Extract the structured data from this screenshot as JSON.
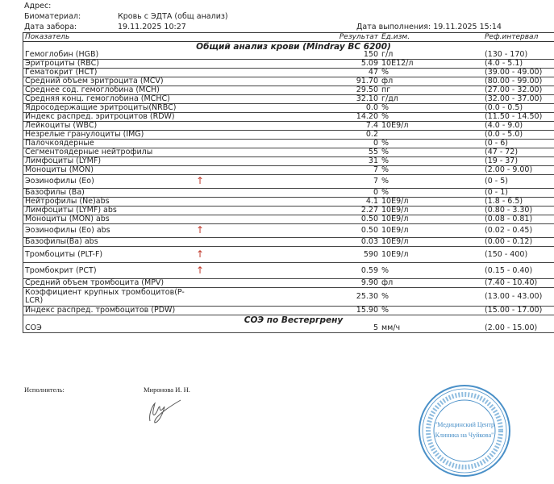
{
  "header": {
    "address_label": "Адрес:",
    "biomaterial_label": "Биоматериал:",
    "biomaterial_value": "Кровь с ЭДТА (общ анализ)",
    "collection_label": "Дата забора:",
    "collection_value": "19.11.2025 10:27",
    "completed": "Дата выполнения: 19.11.2025 15:14"
  },
  "table": {
    "columns": [
      "Показатель",
      "Результат",
      "Ед.изм.",
      "Реф.интервал"
    ],
    "sections": [
      {
        "title": "Общий анализ крови (Mindray BC 6200)",
        "rows": [
          {
            "name": "Гемоглобин (HGB)",
            "flag": "",
            "result": "150",
            "unit": "г/л",
            "ref": "(130 - 170)"
          },
          {
            "name": "Эритроциты (RBC)",
            "flag": "",
            "result": "5.09",
            "unit": "10E12/л",
            "ref": "(4.0 - 5.1)"
          },
          {
            "name": "Гематокрит (HCT)",
            "flag": "",
            "result": "47",
            "unit": "%",
            "ref": "(39.00 - 49.00)"
          },
          {
            "name": "Средний объем эритроцита (MCV)",
            "flag": "",
            "result": "91.70",
            "unit": "фл",
            "ref": "(80.00 - 99.00)"
          },
          {
            "name": "Среднее сод. гемоглобина (MCH)",
            "flag": "",
            "result": "29.50",
            "unit": "пг",
            "ref": "(27.00 - 32.00)"
          },
          {
            "name": "Средняя конц. гемоглобина (MCHC)",
            "flag": "",
            "result": "32.10",
            "unit": "г/дл",
            "ref": "(32.00 - 37.00)"
          },
          {
            "name": "Ядросодержащие эритроциты(NRBC)",
            "flag": "",
            "result": "0.0",
            "unit": "%",
            "ref": "(0.0 - 0.5)"
          },
          {
            "name": "Индекс распред. эритроцитов (RDW)",
            "flag": "",
            "result": "14.20",
            "unit": "%",
            "ref": "(11.50 - 14.50)"
          },
          {
            "name": "Лейкоциты (WBC)",
            "flag": "",
            "result": "7.4",
            "unit": "10E9/л",
            "ref": "(4.0 - 9.0)"
          },
          {
            "name": "Незрелые гранулоциты (IMG)",
            "flag": "",
            "result": "0.2",
            "unit": "",
            "ref": "(0.0 - 5.0)"
          },
          {
            "name": "Палочкоядерные",
            "flag": "",
            "result": "0",
            "unit": "%",
            "ref": "(0 - 6)"
          },
          {
            "name": "Сегментоядерные нейтрофилы",
            "flag": "",
            "result": "55",
            "unit": "%",
            "ref": "(47 - 72)"
          },
          {
            "name": "Лимфоциты (LYMF)",
            "flag": "",
            "result": "31",
            "unit": "%",
            "ref": "(19 - 37)"
          },
          {
            "name": "Моноциты (MON)",
            "flag": "",
            "result": "7",
            "unit": "%",
            "ref": "(2.00 - 9.00)"
          },
          {
            "name": "Эозинофилы (Eo)",
            "flag": "↑",
            "result": "7",
            "unit": "%",
            "ref": "(0 - 5)"
          },
          {
            "name": "Базофилы (Ba)",
            "flag": "",
            "result": "0",
            "unit": "%",
            "ref": "(0 - 1)"
          },
          {
            "name": "Нейтрофилы (Ne)abs",
            "flag": "",
            "result": "4.1",
            "unit": "10E9/л",
            "ref": "(1.8 - 6.5)"
          },
          {
            "name": "Лимфоциты (LYMF) abs",
            "flag": "",
            "result": "2.27",
            "unit": "10E9/л",
            "ref": "(0.80 - 3.30)"
          },
          {
            "name": "Моноциты (MON) abs",
            "flag": "",
            "result": "0.50",
            "unit": "10E9/л",
            "ref": "(0.08 - 0.81)"
          },
          {
            "name": "Эозинофилы (Eo) abs",
            "flag": "↑",
            "result": "0.50",
            "unit": "10E9/л",
            "ref": "(0.02 - 0.45)"
          },
          {
            "name": "Базофилы(Ba) abs",
            "flag": "",
            "result": "0.03",
            "unit": "10E9/л",
            "ref": "(0.00 - 0.12)"
          },
          {
            "name": "Тромбоциты (PLT-F)",
            "flag": "↑",
            "result": "590",
            "unit": "10E9/л",
            "ref": "(150 - 400)"
          },
          {
            "name": "Тромбокрит (PCT)",
            "flag": "↑",
            "result": "0.59",
            "unit": "%",
            "ref": "(0.15 - 0.40)"
          },
          {
            "name": "Средний объем тромбоцита (MPV)",
            "flag": "",
            "result": "9.90",
            "unit": "фл",
            "ref": "(7.40 - 10.40)"
          },
          {
            "name": "Коэффициент крупных тромбоцитов(P-LCR)",
            "flag": "",
            "result": "25.30",
            "unit": "%",
            "ref": "(13.00 - 43.00)"
          },
          {
            "name": "Индекс распред. тромбоцитов (PDW)",
            "flag": "",
            "result": "15.90",
            "unit": "%",
            "ref": "(15.00 - 17.00)"
          }
        ]
      },
      {
        "title": "СОЭ по Вестергрену",
        "rows": [
          {
            "name": "СОЭ",
            "flag": "",
            "result": "5",
            "unit": "мм/ч",
            "ref": "(2.00 - 15.00)"
          }
        ]
      }
    ]
  },
  "footer": {
    "executor_label": "Исполнитель:",
    "executor_name": "Миронова И. Н.",
    "stamp_text": "\"Медицинский Центр Клиника на Чуйкова\" ОГРН 1181690... ИНН 1657249... Республика Татарстан город Казань",
    "stamp_color": "#4a90c8",
    "flag_color": "#c0392b"
  }
}
